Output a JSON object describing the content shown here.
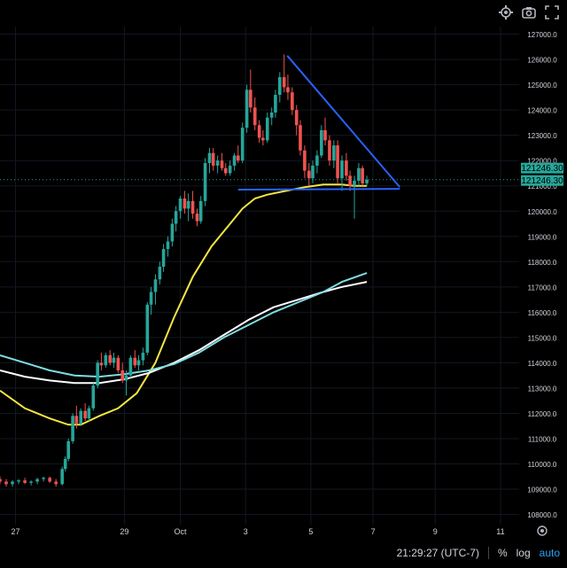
{
  "toolbar": {
    "icons": [
      "gear-icon",
      "camera-icon",
      "fullscreen-icon"
    ]
  },
  "price_labels": {
    "last_price": "121246.30",
    "prev_price": "121246.30",
    "price_color": "#26a69a"
  },
  "bottom_bar": {
    "time": "21:29:27 (UTC-7)",
    "percent": "%",
    "log": "log",
    "auto": "auto"
  },
  "chart_data": {
    "type": "candlestick",
    "title": "",
    "xlabel": "",
    "ylabel": "",
    "ylim": [
      107600,
      127300
    ],
    "y_ticks": [
      108000,
      109000,
      110000,
      111000,
      112000,
      113000,
      114000,
      115000,
      116000,
      117000,
      118000,
      119000,
      120000,
      121000,
      122000,
      123000,
      124000,
      125000,
      126000,
      127000
    ],
    "x_ticks": [
      {
        "label": "27",
        "x": 0.25
      },
      {
        "label": "29",
        "x": 2
      },
      {
        "label": "Oct",
        "x": 2.9
      },
      {
        "label": "3",
        "x": 3.95
      },
      {
        "label": "5",
        "x": 5
      },
      {
        "label": "7",
        "x": 6
      },
      {
        "label": "9",
        "x": 7
      },
      {
        "label": "11",
        "x": 8.05
      }
    ],
    "x_range": [
      0,
      8.35
    ],
    "candles": [
      [
        0.0,
        109400,
        109500,
        109200,
        109300
      ],
      [
        0.1,
        109300,
        109400,
        109100,
        109200
      ],
      [
        0.2,
        109200,
        109350,
        109100,
        109300
      ],
      [
        0.3,
        109300,
        109400,
        109200,
        109350
      ],
      [
        0.4,
        109350,
        109450,
        109200,
        109250
      ],
      [
        0.5,
        109250,
        109350,
        109150,
        109300
      ],
      [
        0.6,
        109300,
        109450,
        109200,
        109400
      ],
      [
        0.7,
        109400,
        109500,
        109300,
        109450
      ],
      [
        0.8,
        109450,
        109500,
        109250,
        109300
      ],
      [
        0.9,
        109300,
        109400,
        109100,
        109200
      ],
      [
        1.0,
        109200,
        109900,
        109150,
        109800
      ],
      [
        1.05,
        109800,
        110300,
        109700,
        110200
      ],
      [
        1.1,
        110200,
        111000,
        110100,
        110900
      ],
      [
        1.17,
        110900,
        112000,
        110800,
        111900
      ],
      [
        1.23,
        111900,
        112300,
        111400,
        111600
      ],
      [
        1.3,
        111600,
        112200,
        111500,
        112100
      ],
      [
        1.37,
        112100,
        112400,
        111700,
        111800
      ],
      [
        1.43,
        111800,
        112300,
        111700,
        112200
      ],
      [
        1.5,
        112200,
        113200,
        112100,
        113100
      ],
      [
        1.57,
        113100,
        114100,
        113000,
        114000
      ],
      [
        1.63,
        114000,
        114400,
        113700,
        113900
      ],
      [
        1.7,
        113900,
        114400,
        113800,
        114300
      ],
      [
        1.77,
        114300,
        114500,
        113900,
        114000
      ],
      [
        1.83,
        114000,
        114400,
        113800,
        114200
      ],
      [
        1.9,
        114200,
        114300,
        113600,
        113700
      ],
      [
        1.97,
        113700,
        114000,
        113200,
        113300
      ],
      [
        2.03,
        113300,
        113700,
        112700,
        113500
      ],
      [
        2.1,
        113500,
        114300,
        113400,
        114200
      ],
      [
        2.17,
        114200,
        114500,
        113800,
        113900
      ],
      [
        2.23,
        113900,
        114300,
        113700,
        114100
      ],
      [
        2.3,
        114100,
        114600,
        113900,
        114400
      ],
      [
        2.37,
        114400,
        116400,
        114300,
        116300
      ],
      [
        2.43,
        116300,
        117000,
        115900,
        116800
      ],
      [
        2.5,
        116800,
        117500,
        116300,
        117300
      ],
      [
        2.57,
        117300,
        118000,
        117100,
        117800
      ],
      [
        2.63,
        117800,
        118700,
        117600,
        118500
      ],
      [
        2.7,
        118500,
        119000,
        118200,
        118800
      ],
      [
        2.77,
        118800,
        119700,
        118600,
        119500
      ],
      [
        2.83,
        119500,
        120200,
        119200,
        120000
      ],
      [
        2.9,
        120000,
        120600,
        119700,
        120500
      ],
      [
        2.97,
        120500,
        120800,
        119900,
        120100
      ],
      [
        3.03,
        120100,
        120700,
        119600,
        120400
      ],
      [
        3.1,
        120400,
        120800,
        119700,
        119900
      ],
      [
        3.17,
        119900,
        120100,
        119400,
        119600
      ],
      [
        3.23,
        119600,
        120600,
        119500,
        120400
      ],
      [
        3.3,
        120400,
        122100,
        120200,
        121900
      ],
      [
        3.37,
        121900,
        122500,
        121500,
        122300
      ],
      [
        3.43,
        122300,
        122500,
        121600,
        121800
      ],
      [
        3.5,
        121800,
        122200,
        121500,
        122000
      ],
      [
        3.57,
        122000,
        122300,
        121600,
        121700
      ],
      [
        3.63,
        121700,
        121900,
        121400,
        121500
      ],
      [
        3.7,
        121500,
        122000,
        121400,
        121800
      ],
      [
        3.77,
        121800,
        122300,
        121600,
        122200
      ],
      [
        3.83,
        122200,
        122600,
        121900,
        122000
      ],
      [
        3.9,
        122000,
        123500,
        121900,
        123300
      ],
      [
        3.97,
        123300,
        125000,
        123100,
        124800
      ],
      [
        4.03,
        124800,
        125600,
        123900,
        124100
      ],
      [
        4.1,
        124100,
        124500,
        123200,
        123400
      ],
      [
        4.17,
        123400,
        123600,
        122700,
        122900
      ],
      [
        4.23,
        122900,
        123200,
        122600,
        122800
      ],
      [
        4.3,
        122800,
        123900,
        122700,
        123700
      ],
      [
        4.37,
        123700,
        124100,
        123400,
        123900
      ],
      [
        4.43,
        123900,
        124800,
        123700,
        124600
      ],
      [
        4.5,
        124600,
        125500,
        124300,
        125300
      ],
      [
        4.57,
        125300,
        126200,
        124700,
        124900
      ],
      [
        4.63,
        124900,
        125400,
        124400,
        124700
      ],
      [
        4.7,
        124700,
        124900,
        123800,
        124000
      ],
      [
        4.77,
        124000,
        124200,
        123000,
        123400
      ],
      [
        4.83,
        123400,
        123600,
        122200,
        122400
      ],
      [
        4.9,
        122400,
        122600,
        121300,
        121600
      ],
      [
        4.97,
        121600,
        121900,
        121000,
        121300
      ],
      [
        5.03,
        121300,
        122000,
        121100,
        121800
      ],
      [
        5.1,
        121800,
        122400,
        121500,
        122200
      ],
      [
        5.17,
        122200,
        123400,
        122100,
        123200
      ],
      [
        5.23,
        123200,
        123700,
        122600,
        122800
      ],
      [
        5.3,
        122800,
        123000,
        121800,
        122000
      ],
      [
        5.37,
        122000,
        122800,
        121700,
        122600
      ],
      [
        5.43,
        122600,
        122800,
        121100,
        121300
      ],
      [
        5.5,
        121300,
        122200,
        120800,
        122000
      ],
      [
        5.57,
        122000,
        122300,
        121200,
        121400
      ],
      [
        5.63,
        121400,
        121600,
        120800,
        121000
      ],
      [
        5.7,
        121000,
        121400,
        119700,
        121200
      ],
      [
        5.77,
        121200,
        121900,
        121000,
        121700
      ],
      [
        5.83,
        121700,
        121800,
        121000,
        121100
      ],
      [
        5.9,
        121100,
        121400,
        121000,
        121246.3
      ]
    ],
    "series": [
      {
        "name": "",
        "color": "#f5e642",
        "points": [
          [
            0,
            112900
          ],
          [
            0.4,
            112200
          ],
          [
            0.8,
            111800
          ],
          [
            1.1,
            111550
          ],
          [
            1.3,
            111550
          ],
          [
            1.6,
            111900
          ],
          [
            1.9,
            112200
          ],
          [
            2.2,
            112800
          ],
          [
            2.5,
            114000
          ],
          [
            2.8,
            115800
          ],
          [
            3.1,
            117400
          ],
          [
            3.4,
            118600
          ],
          [
            3.7,
            119500
          ],
          [
            3.9,
            120100
          ],
          [
            4.1,
            120500
          ],
          [
            4.3,
            120650
          ],
          [
            4.6,
            120800
          ],
          [
            4.9,
            120950
          ],
          [
            5.2,
            121050
          ],
          [
            5.5,
            121050
          ],
          [
            5.7,
            121000
          ],
          [
            5.9,
            121000
          ]
        ]
      },
      {
        "name": "",
        "color": "#ffffff",
        "points": [
          [
            0,
            113700
          ],
          [
            0.4,
            113450
          ],
          [
            0.8,
            113300
          ],
          [
            1.2,
            113200
          ],
          [
            1.6,
            113200
          ],
          [
            2.0,
            113350
          ],
          [
            2.4,
            113600
          ],
          [
            2.8,
            114000
          ],
          [
            3.2,
            114500
          ],
          [
            3.6,
            115100
          ],
          [
            4.0,
            115700
          ],
          [
            4.4,
            116200
          ],
          [
            4.8,
            116500
          ],
          [
            5.2,
            116800
          ],
          [
            5.5,
            117000
          ],
          [
            5.9,
            117200
          ]
        ]
      },
      {
        "name": "",
        "color": "#7fdde2",
        "points": [
          [
            0,
            114300
          ],
          [
            0.4,
            114000
          ],
          [
            0.8,
            113700
          ],
          [
            1.2,
            113500
          ],
          [
            1.6,
            113450
          ],
          [
            2.0,
            113550
          ],
          [
            2.4,
            113700
          ],
          [
            2.8,
            113950
          ],
          [
            3.2,
            114400
          ],
          [
            3.6,
            115000
          ],
          [
            4.0,
            115500
          ],
          [
            4.4,
            116000
          ],
          [
            4.8,
            116400
          ],
          [
            5.2,
            116800
          ],
          [
            5.5,
            117200
          ],
          [
            5.9,
            117550
          ]
        ]
      }
    ],
    "annotations": [
      {
        "type": "trendline",
        "color": "#2962ff",
        "points": [
          [
            4.62,
            126150
          ],
          [
            6.43,
            120950
          ]
        ]
      },
      {
        "type": "trendline",
        "color": "#2962ff",
        "points": [
          [
            3.83,
            120850
          ],
          [
            6.43,
            120880
          ]
        ]
      }
    ],
    "candle_colors": {
      "up": "#26a69a",
      "down": "#ef5350"
    },
    "grid": true,
    "legend": "none"
  }
}
